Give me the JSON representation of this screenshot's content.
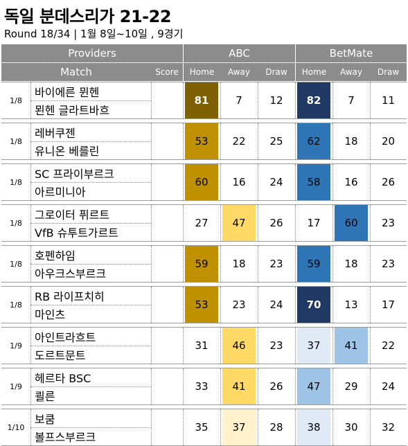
{
  "title": "독일 분데스리가 21-22",
  "subtitle": "Round 18/34 | 1월 8일~10일 , 9경기",
  "header": {
    "providers_label": "Providers",
    "match_label": "Match",
    "score_label": "Score",
    "provider_a": "ABC",
    "provider_b": "BetMate",
    "home_label": "Home",
    "away_label": "Away",
    "draw_label": "Draw"
  },
  "colors": {
    "header_bg": "#8c8c8c",
    "abc_strong": "#7f6000",
    "abc_high": "#bf9000",
    "abc_mid": "#ffd966",
    "abc_low": "#fff2cc",
    "bm_strong": "#1f3864",
    "bm_high": "#2e75b6",
    "bm_mid": "#9dc3e6",
    "bm_low": "#deebf7"
  },
  "matches": [
    {
      "date": "1/8",
      "home": "바이에른 뮌헨",
      "away": "묀헨 글라트바흐",
      "score": "",
      "abc": {
        "home": "81",
        "away": "7",
        "draw": "12"
      },
      "bm": {
        "home": "82",
        "away": "7",
        "draw": "11"
      }
    },
    {
      "date": "1/8",
      "home": "레버쿠젠",
      "away": "유니온 베를린",
      "score": "",
      "abc": {
        "home": "53",
        "away": "22",
        "draw": "25"
      },
      "bm": {
        "home": "62",
        "away": "18",
        "draw": "20"
      }
    },
    {
      "date": "1/8",
      "home": "SC 프라이부르크",
      "away": "아르미니아",
      "score": "",
      "abc": {
        "home": "60",
        "away": "16",
        "draw": "24"
      },
      "bm": {
        "home": "58",
        "away": "16",
        "draw": "26"
      }
    },
    {
      "date": "1/8",
      "home": "그로이터 퓌르트",
      "away": "VfB 슈투트가르트",
      "score": "",
      "abc": {
        "home": "27",
        "away": "47",
        "draw": "26"
      },
      "bm": {
        "home": "17",
        "away": "60",
        "draw": "23"
      }
    },
    {
      "date": "1/8",
      "home": "호펜하임",
      "away": "아우크스부르크",
      "score": "",
      "abc": {
        "home": "59",
        "away": "18",
        "draw": "23"
      },
      "bm": {
        "home": "59",
        "away": "18",
        "draw": "23"
      }
    },
    {
      "date": "1/8",
      "home": "RB 라이프치히",
      "away": "마인츠",
      "score": "",
      "abc": {
        "home": "53",
        "away": "23",
        "draw": "24"
      },
      "bm": {
        "home": "70",
        "away": "13",
        "draw": "17"
      }
    },
    {
      "date": "1/9",
      "home": "아인트라흐트",
      "away": "도르트문트",
      "score": "",
      "abc": {
        "home": "31",
        "away": "46",
        "draw": "23"
      },
      "bm": {
        "home": "37",
        "away": "41",
        "draw": "22"
      }
    },
    {
      "date": "1/9",
      "home": "헤르타 BSC",
      "away": "쾰른",
      "score": "",
      "abc": {
        "home": "33",
        "away": "41",
        "draw": "26"
      },
      "bm": {
        "home": "47",
        "away": "29",
        "draw": "24"
      }
    },
    {
      "date": "1/10",
      "home": "보쿰",
      "away": "볼프스부르크",
      "score": "",
      "abc": {
        "home": "35",
        "away": "37",
        "draw": "28"
      },
      "bm": {
        "home": "38",
        "away": "30",
        "draw": "32"
      }
    }
  ]
}
